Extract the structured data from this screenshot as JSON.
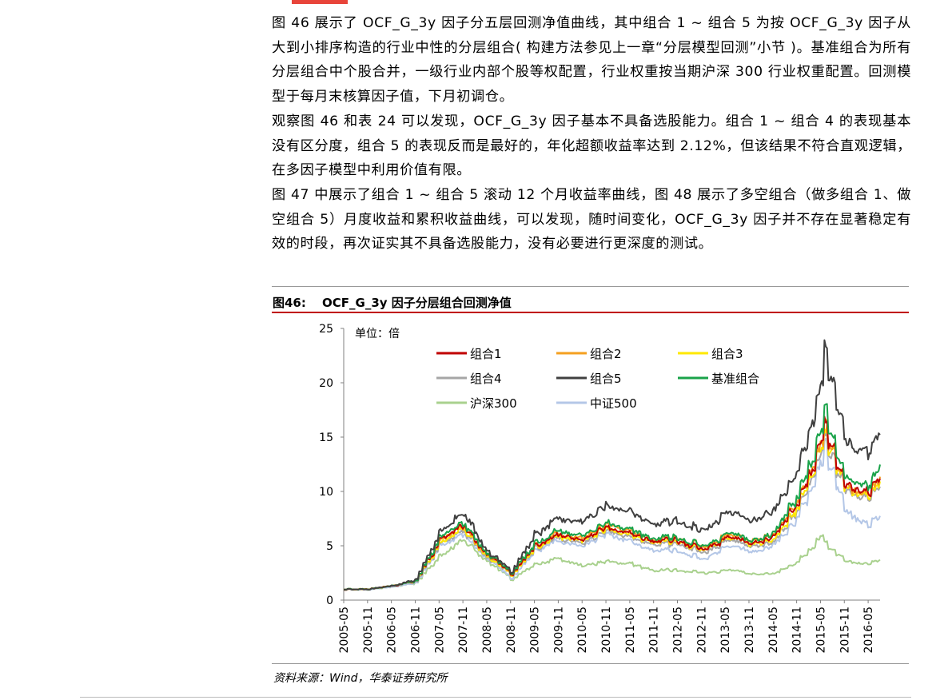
{
  "colors": {
    "accent_red": "#c00000",
    "top_bar": "#e8443a"
  },
  "paragraphs": [
    "图 46 展示了 OCF_G_3y 因子分五层回测净值曲线，其中组合 1 ~ 组合 5 为按 OCF_G_3y 因子从大到小排序构造的行业中性的分层组合( 构建方法参见上一章“分层模型回测”小节 )。基准组合为所有分层组合中个股合并，一级行业内部个股等权配置，行业权重按当期沪深 300 行业权重配置。回测模型于每月末核算因子值，下月初调仓。",
    "观察图 46 和表 24 可以发现，OCF_G_3y 因子基本不具备选股能力。组合 1 ~ 组合 4 的表现基本没有区分度，组合 5 的表现反而是最好的，年化超额收益率达到 2.12%，但该结果不符合直观逻辑，在多因子模型中利用价值有限。",
    "图 47 中展示了组合 1 ~ 组合 5 滚动 12 个月收益率曲线，图 48 展示了多空组合（做多组合 1、做空组合 5）月度收益和累积收益曲线，可以发现，随时间变化，OCF_G_3y 因子并不存在显著稳定有效的时段，再次证实其不具备选股能力，没有必要进行更深度的测试。"
  ],
  "figure": {
    "number": "图46:",
    "title": "OCF_G_3y 因子分层组合回测净值",
    "source": "资料来源：Wind，华泰证券研究所"
  },
  "chart_data": {
    "type": "line",
    "unit_label": "单位：倍",
    "title": "",
    "xlabel": "",
    "ylabel": "",
    "ylim": [
      0,
      25
    ],
    "yticks": [
      0,
      5,
      10,
      15,
      20,
      25
    ],
    "x_start": "2005-05",
    "x_end": "2016-08",
    "xticks": [
      "2005-05",
      "2005-11",
      "2006-05",
      "2006-11",
      "2007-05",
      "2007-11",
      "2008-05",
      "2008-11",
      "2009-05",
      "2009-11",
      "2010-05",
      "2010-11",
      "2011-05",
      "2011-11",
      "2012-05",
      "2012-11",
      "2013-05",
      "2013-11",
      "2014-05",
      "2014-11",
      "2015-05",
      "2015-11",
      "2016-05"
    ],
    "grid": false,
    "legend_position": "top-left",
    "x": [
      "2005-05",
      "2005-11",
      "2006-05",
      "2006-11",
      "2007-05",
      "2007-11",
      "2008-05",
      "2008-11",
      "2009-05",
      "2009-11",
      "2010-05",
      "2010-11",
      "2011-05",
      "2011-11",
      "2012-05",
      "2012-11",
      "2013-05",
      "2013-11",
      "2014-05",
      "2014-11",
      "2015-05",
      "2015-06",
      "2015-11",
      "2016-05",
      "2016-08"
    ],
    "series": [
      {
        "name": "组合1",
        "color": "#c00000",
        "values": [
          1.0,
          1.0,
          1.3,
          1.8,
          5.5,
          6.8,
          4.2,
          2.4,
          5.0,
          6.0,
          5.6,
          6.6,
          6.0,
          5.4,
          5.5,
          4.7,
          5.6,
          5.4,
          5.8,
          9.0,
          14.5,
          16.0,
          10.5,
          10.2,
          11.2
        ]
      },
      {
        "name": "组合2",
        "color": "#f4a020",
        "values": [
          1.0,
          1.0,
          1.3,
          1.8,
          5.4,
          6.7,
          4.1,
          2.4,
          5.1,
          6.1,
          5.8,
          6.8,
          6.3,
          5.6,
          5.7,
          4.9,
          5.8,
          5.6,
          6.0,
          9.2,
          14.2,
          15.8,
          10.4,
          10.0,
          11.0
        ]
      },
      {
        "name": "组合3",
        "color": "#ffe800",
        "values": [
          1.0,
          1.0,
          1.3,
          1.8,
          5.2,
          6.5,
          4.0,
          2.3,
          4.9,
          5.9,
          5.5,
          6.5,
          5.9,
          5.3,
          5.4,
          4.6,
          5.5,
          5.3,
          5.5,
          8.6,
          13.8,
          15.2,
          10.2,
          9.8,
          10.6
        ]
      },
      {
        "name": "组合4",
        "color": "#a6a6a6",
        "values": [
          1.0,
          1.0,
          1.3,
          1.7,
          5.1,
          6.3,
          3.9,
          2.3,
          4.8,
          5.7,
          5.3,
          6.3,
          5.7,
          5.1,
          5.2,
          4.4,
          5.3,
          5.1,
          5.3,
          8.4,
          13.4,
          14.8,
          10.0,
          9.6,
          10.4
        ]
      },
      {
        "name": "组合5",
        "color": "#404040",
        "values": [
          1.0,
          1.0,
          1.3,
          1.9,
          6.2,
          8.0,
          4.5,
          2.6,
          6.1,
          7.6,
          7.3,
          8.6,
          8.0,
          7.0,
          7.4,
          6.4,
          7.8,
          7.5,
          8.2,
          12.0,
          19.5,
          22.8,
          14.5,
          13.8,
          15.2
        ]
      },
      {
        "name": "基准组合",
        "color": "#1aa34a",
        "values": [
          1.0,
          1.0,
          1.3,
          1.8,
          5.7,
          7.0,
          4.3,
          2.5,
          5.3,
          6.4,
          6.0,
          7.0,
          6.4,
          5.7,
          5.8,
          5.0,
          5.9,
          5.7,
          6.1,
          9.6,
          15.5,
          17.0,
          11.2,
          10.8,
          12.0
        ]
      },
      {
        "name": "沪深300",
        "color": "#a9d18e",
        "values": [
          1.0,
          0.95,
          1.2,
          1.6,
          4.0,
          5.5,
          3.6,
          1.9,
          3.3,
          3.8,
          3.2,
          3.5,
          3.3,
          2.7,
          2.8,
          2.5,
          2.7,
          2.5,
          2.4,
          3.5,
          5.8,
          5.2,
          3.6,
          3.4,
          3.6
        ]
      },
      {
        "name": "中证500",
        "color": "#b4c7e7",
        "values": [
          1.0,
          0.95,
          1.2,
          1.6,
          4.9,
          6.0,
          3.8,
          2.0,
          4.6,
          5.5,
          5.0,
          6.0,
          5.3,
          4.6,
          4.6,
          3.8,
          4.8,
          4.6,
          5.0,
          7.6,
          12.5,
          14.0,
          8.2,
          7.0,
          7.6
        ]
      }
    ]
  }
}
